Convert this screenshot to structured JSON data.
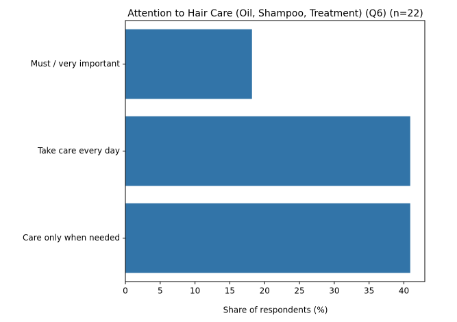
{
  "chart_data": {
    "type": "barh",
    "title": "Attention to Hair Care (Oil, Shampoo, Treatment) (Q6) (n=22)",
    "x_label": "Share of respondents (%)",
    "categories": [
      "Must / very important",
      "Take care every day",
      "Care only when needed"
    ],
    "values": [
      18.18,
      40.91,
      40.91
    ],
    "color": "#3274a8",
    "xlim": [
      0,
      43
    ],
    "xticks": [
      0,
      5,
      10,
      15,
      20,
      25,
      30,
      35,
      40
    ],
    "grid": false
  }
}
